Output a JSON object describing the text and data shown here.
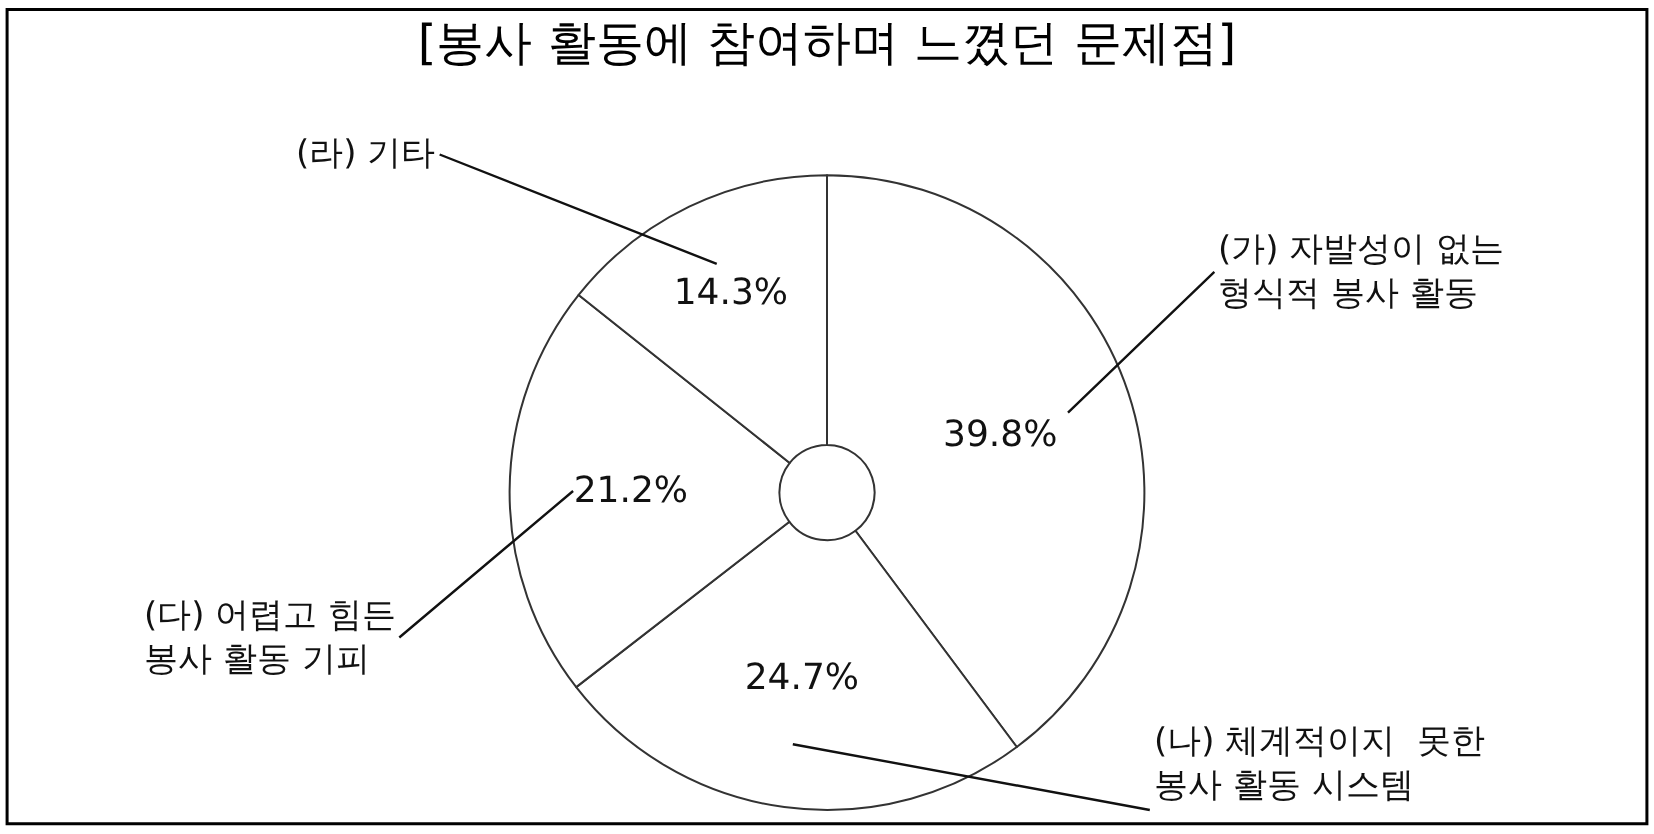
{
  "chart_data": {
    "type": "donut",
    "title": "[봉사 활동에 참여하며 느꼈던 문제점]",
    "categories": [
      "(가) 자발성이 없는\n형식적 봉사 활동",
      "(나) 체계적이지  못한\n봉사 활동 시스템",
      "(다) 어렵고 힘든\n봉사 활동 기피",
      "(라) 기타"
    ],
    "values": [
      39.8,
      24.7,
      21.2,
      14.3
    ],
    "value_labels": [
      "39.8%",
      "24.7%",
      "21.2%",
      "14.3%"
    ],
    "colors": [
      "#ffffff",
      "#ffffff",
      "#ffffff",
      "#ffffff"
    ],
    "legend": false
  }
}
